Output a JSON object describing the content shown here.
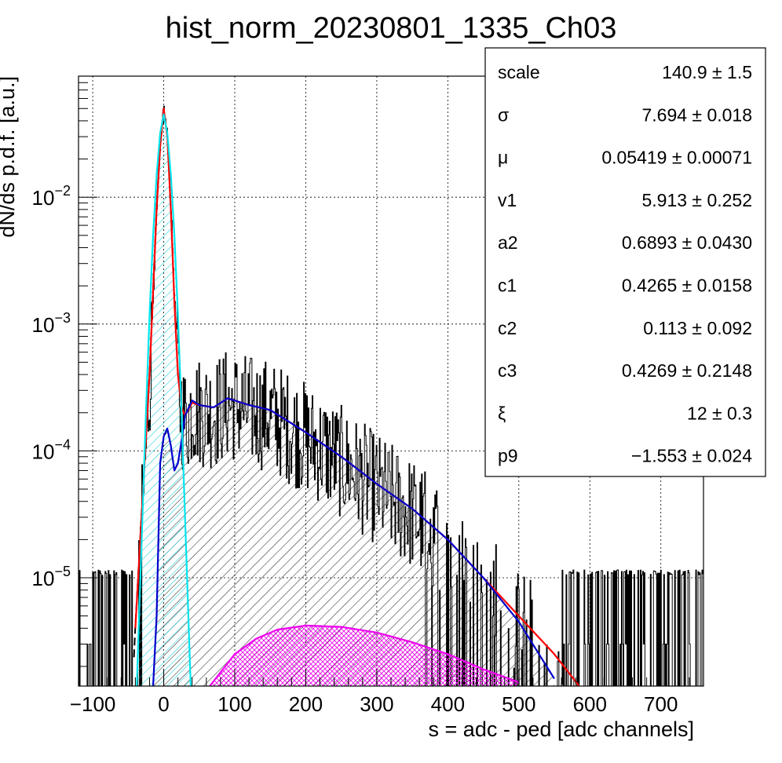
{
  "chart_data": {
    "type": "histogram",
    "title": "hist_norm_20230801_1335_Ch03",
    "xlabel": "s = adc - ped [adc channels]",
    "ylabel": "dN/ds p.d.f. [a.u.]",
    "xlim": [
      -120,
      760
    ],
    "ylim": [
      1.4e-06,
      0.09
    ],
    "log_y": true,
    "grid": true,
    "x_ticks": [
      {
        "value": -100,
        "label": "−100"
      },
      {
        "value": 0,
        "label": "0"
      },
      {
        "value": 100,
        "label": "100"
      },
      {
        "value": 200,
        "label": "200"
      },
      {
        "value": 300,
        "label": "300"
      },
      {
        "value": 400,
        "label": "400"
      },
      {
        "value": 500,
        "label": "500"
      },
      {
        "value": 600,
        "label": "600"
      },
      {
        "value": 700,
        "label": "700"
      }
    ],
    "y_ticks": [
      {
        "value": 1e-05,
        "base": "10",
        "exp": "−5"
      },
      {
        "value": 0.0001,
        "base": "10",
        "exp": "−4"
      },
      {
        "value": 0.001,
        "base": "10",
        "exp": "−3"
      },
      {
        "value": 0.01,
        "base": "10",
        "exp": "−2"
      }
    ],
    "series": [
      {
        "color": "#ff0000",
        "x": [
          -40,
          -30,
          -20,
          -10,
          -5,
          0,
          5,
          10,
          15,
          20,
          25,
          30,
          40,
          50,
          70,
          90,
          120,
          150,
          200,
          250,
          300,
          350,
          400,
          450,
          500,
          550,
          585
        ],
        "y": [
          4e-06,
          4e-05,
          0.0004,
          0.008,
          0.025,
          0.05,
          0.03,
          0.008,
          0.0015,
          0.0004,
          0.00022,
          0.00019,
          0.00024,
          0.00023,
          0.00022,
          0.00026,
          0.00023,
          0.00021,
          0.00014,
          9e-05,
          5.5e-05,
          3.5e-05,
          2e-05,
          1e-05,
          5e-06,
          2.5e-06,
          1.4e-06
        ]
      },
      {
        "color": "#0000cc",
        "x": [
          -15,
          -10,
          -5,
          0,
          5,
          10,
          15,
          20,
          25,
          30,
          40,
          50,
          70,
          90,
          120,
          150,
          200,
          250,
          300,
          350,
          400,
          450,
          500,
          550
        ],
        "y": [
          1.4e-06,
          5e-06,
          8e-05,
          0.00013,
          0.00015,
          0.00011,
          7e-05,
          8e-05,
          0.00012,
          0.00019,
          0.00025,
          0.00023,
          0.00022,
          0.00026,
          0.00023,
          0.00021,
          0.00014,
          9e-05,
          5.5e-05,
          3.5e-05,
          2e-05,
          1e-05,
          4.5e-06,
          1.6e-06
        ]
      },
      {
        "color": "#00e5ee",
        "x": [
          -38,
          -30,
          -25,
          -20,
          -15,
          -10,
          -5,
          0,
          5,
          10,
          15,
          20,
          25,
          30,
          38
        ],
        "y": [
          1.4e-06,
          3e-05,
          0.0002,
          0.0012,
          0.005,
          0.015,
          0.032,
          0.045,
          0.032,
          0.015,
          0.005,
          0.0012,
          0.0002,
          3e-05,
          1.4e-06
        ]
      },
      {
        "color": "#ee00ee",
        "x": [
          65,
          80,
          100,
          130,
          160,
          200,
          250,
          300,
          350,
          400,
          450,
          500
        ],
        "y": [
          1.4e-06,
          1.8e-06,
          2.5e-06,
          3.3e-06,
          3.9e-06,
          4.2e-06,
          4.1e-06,
          3.7e-06,
          3.1e-06,
          2.5e-06,
          1.9e-06,
          1.5e-06
        ]
      }
    ],
    "stats": [
      {
        "name": "scale",
        "value": "140.9 ± 1.5"
      },
      {
        "name": "σ",
        "value": "7.694 ± 0.018"
      },
      {
        "name": "μ",
        "value": "0.05419 ± 0.00071"
      },
      {
        "name": "v1",
        "value": "5.913 ± 0.252"
      },
      {
        "name": "a2",
        "value": "0.6893 ± 0.0430"
      },
      {
        "name": "c1",
        "value": "0.4265 ± 0.0158"
      },
      {
        "name": "c2",
        "value": "0.113 ± 0.092"
      },
      {
        "name": "c3",
        "value": "0.4269 ± 0.2148"
      },
      {
        "name": "ξ",
        "value": "12 ± 0.3"
      },
      {
        "name": "p9",
        "value": "−1.553 ± 0.024"
      }
    ]
  }
}
